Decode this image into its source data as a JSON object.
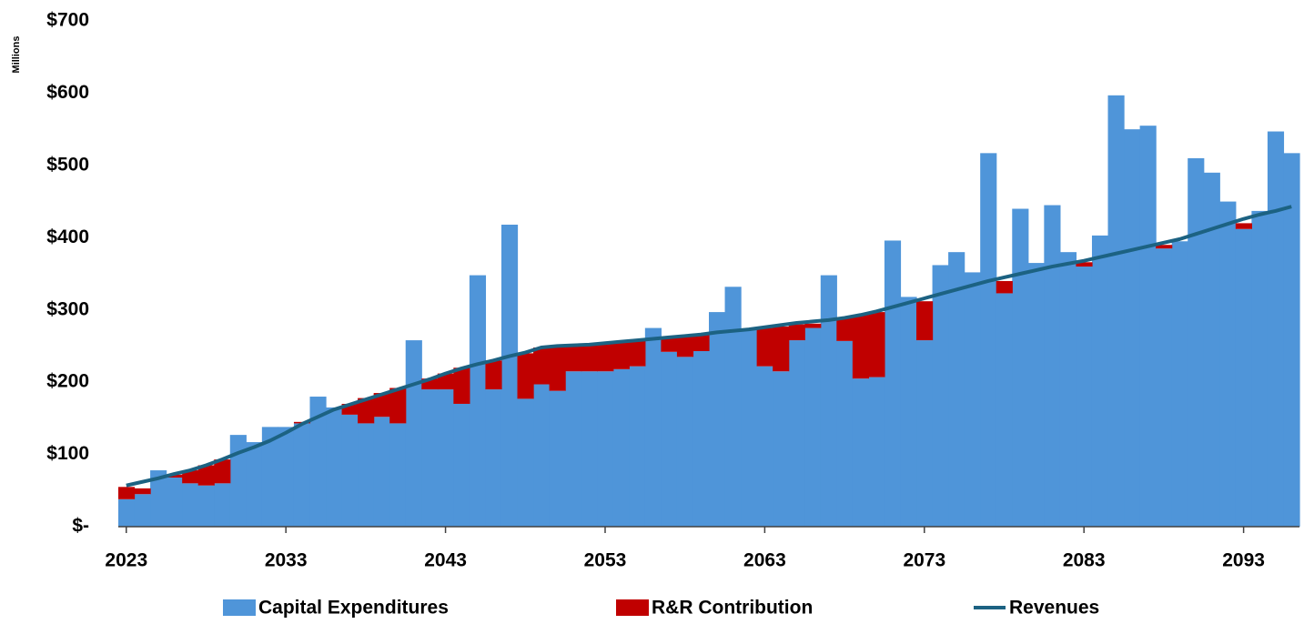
{
  "chart_data": {
    "type": "bar",
    "stacked": true,
    "y_axis_label": "Millions",
    "x": [
      2023,
      2024,
      2025,
      2026,
      2027,
      2028,
      2029,
      2030,
      2031,
      2032,
      2033,
      2034,
      2035,
      2036,
      2037,
      2038,
      2039,
      2040,
      2041,
      2042,
      2043,
      2044,
      2045,
      2046,
      2047,
      2048,
      2049,
      2050,
      2051,
      2052,
      2053,
      2054,
      2055,
      2056,
      2057,
      2058,
      2059,
      2060,
      2061,
      2062,
      2063,
      2064,
      2065,
      2066,
      2067,
      2068,
      2069,
      2070,
      2071,
      2072,
      2073,
      2074,
      2075,
      2076,
      2077,
      2078,
      2079,
      2080,
      2081,
      2082,
      2083,
      2084,
      2085,
      2086,
      2087,
      2088,
      2089,
      2090,
      2091,
      2092,
      2093,
      2094,
      2095,
      2096
    ],
    "xlim": [
      2022.5,
      2096.5
    ],
    "xticks": [
      2023,
      2033,
      2043,
      2053,
      2063,
      2073,
      2083,
      2093
    ],
    "ylim": [
      0,
      700
    ],
    "yticks": [
      {
        "value": 0,
        "label": "$-"
      },
      {
        "value": 100,
        "label": "$100"
      },
      {
        "value": 200,
        "label": "$200"
      },
      {
        "value": 300,
        "label": "$300"
      },
      {
        "value": 400,
        "label": "$400"
      },
      {
        "value": 500,
        "label": "$500"
      },
      {
        "value": 600,
        "label": "$600"
      },
      {
        "value": 700,
        "label": "$700"
      }
    ],
    "series": [
      {
        "name": "Capital Expenditures",
        "color": "#4f95d9",
        "type": "bar",
        "values": [
          38,
          45,
          78,
          68,
          60,
          57,
          60,
          127,
          117,
          138,
          138,
          143,
          180,
          165,
          155,
          143,
          152,
          143,
          258,
          190,
          190,
          170,
          348,
          190,
          418,
          177,
          197,
          188,
          215,
          215,
          215,
          218,
          222,
          275,
          242,
          235,
          243,
          297,
          332,
          272,
          222,
          215,
          258,
          275,
          348,
          257,
          205,
          207,
          396,
          318,
          258,
          362,
          380,
          352,
          517,
          323,
          440,
          365,
          445,
          380,
          360,
          403,
          597,
          550,
          555,
          385,
          395,
          510,
          490,
          450,
          412,
          437,
          547,
          517
        ]
      },
      {
        "name": "R&R Contribution",
        "color": "#c00000",
        "type": "bar",
        "values": [
          17,
          8,
          0,
          4,
          18,
          28,
          33,
          0,
          0,
          0,
          0,
          2,
          0,
          0,
          15,
          35,
          33,
          49,
          0,
          15,
          22,
          50,
          0,
          40,
          0,
          63,
          51,
          62,
          35,
          37,
          38,
          38,
          35,
          0,
          20,
          28,
          22,
          0,
          0,
          0,
          53,
          62,
          22,
          6,
          0,
          33,
          88,
          90,
          0,
          0,
          54,
          0,
          0,
          0,
          0,
          17,
          0,
          0,
          0,
          0,
          6,
          0,
          0,
          0,
          0,
          5,
          0,
          0,
          0,
          0,
          8,
          0,
          0,
          0
        ]
      },
      {
        "name": "Revenues",
        "color": "#1c6282",
        "type": "line",
        "values": [
          57,
          62,
          67,
          73,
          78,
          85,
          93,
          102,
          110,
          119,
          130,
          142,
          152,
          162,
          169,
          176,
          183,
          190,
          197,
          204,
          212,
          219,
          225,
          230,
          236,
          241,
          248,
          250,
          251,
          252,
          254,
          256,
          258,
          260,
          262,
          264,
          266,
          269,
          271,
          273,
          276,
          279,
          282,
          284,
          286,
          289,
          293,
          298,
          304,
          310,
          316,
          322,
          328,
          334,
          340,
          345,
          350,
          355,
          360,
          364,
          368,
          373,
          378,
          383,
          388,
          393,
          398,
          405,
          412,
          419,
          426,
          432,
          437,
          443
        ]
      }
    ]
  }
}
